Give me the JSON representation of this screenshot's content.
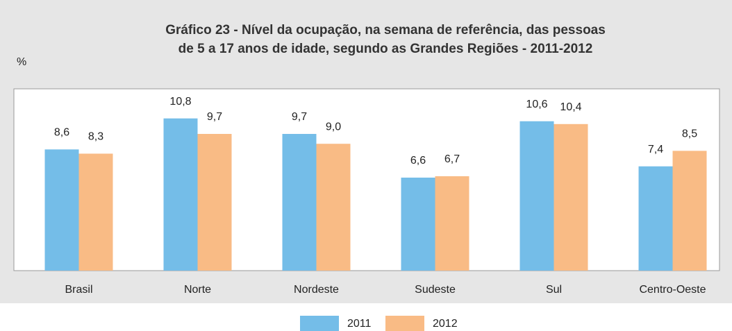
{
  "chart_data": {
    "type": "bar",
    "title": [
      "Gráfico 23 - Nível da ocupação, na semana de referência, das pessoas",
      "de 5 a 17 anos de idade, segundo as Grandes Regiões - 2011-2012"
    ],
    "ylabel": "%",
    "categories": [
      "Brasil",
      "Norte",
      "Nordeste",
      "Sudeste",
      "Sul",
      "Centro-Oeste"
    ],
    "series": [
      {
        "name": "2011",
        "color": "#74bde8",
        "values": [
          8.6,
          10.8,
          9.7,
          6.6,
          10.6,
          7.4
        ],
        "value_labels": [
          "8,6",
          "10,8",
          "9,7",
          "6,6",
          "10,6",
          "7,4"
        ]
      },
      {
        "name": "2012",
        "color": "#f9bb85",
        "values": [
          8.3,
          9.7,
          9.0,
          6.7,
          10.4,
          8.5
        ],
        "value_labels": [
          "8,3",
          "9,7",
          "9,0",
          "6,7",
          "10,4",
          "8,5"
        ]
      }
    ],
    "ylim": [
      0,
      12.9
    ]
  }
}
